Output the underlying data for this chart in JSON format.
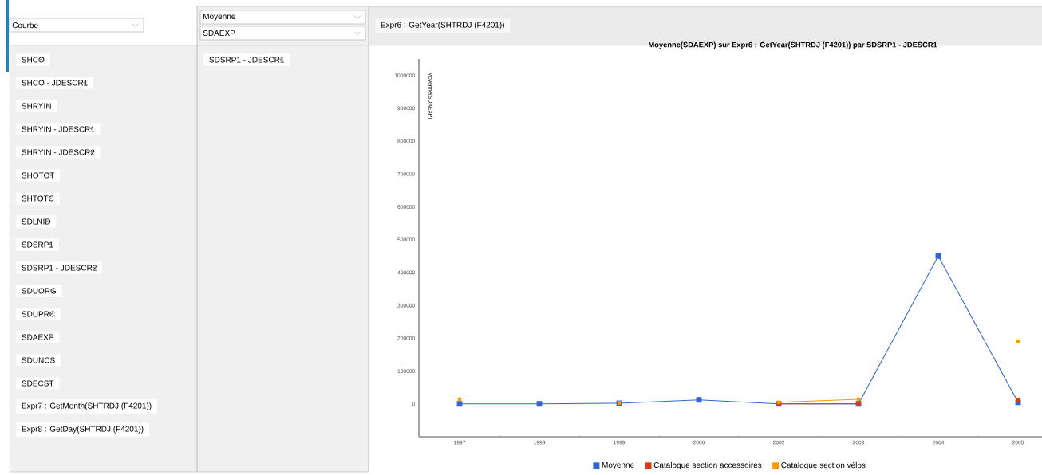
{
  "chart_data": {
    "type": "line",
    "title": "Moyenne(SDAEXP) sur Expr6 : GetYear(SHTRDJ (F4201)) par SDSRP1 - JDESCR1",
    "ylabel": "Moyenne(SDAEXP)",
    "categories": [
      "1997",
      "1998",
      "1999",
      "2000",
      "2002",
      "2003",
      "2004",
      "2005"
    ],
    "series": [
      {
        "name": "Moyenne",
        "color": "#3366cc",
        "values": [
          0,
          0,
          2000,
          12000,
          0,
          0,
          450000,
          5000
        ]
      },
      {
        "name": "Catalogue section accessoires",
        "color": "#dc3912",
        "values": [
          null,
          null,
          null,
          null,
          0,
          0,
          null,
          12000
        ]
      },
      {
        "name": "Catalogue section vélos",
        "color": "#ff9900",
        "values": [
          14000,
          null,
          3000,
          null,
          5000,
          14000,
          null,
          190000
        ]
      }
    ],
    "ylim": [
      -100000,
      1050000
    ],
    "yticks": [
      0,
      100000,
      200000,
      300000,
      400000,
      500000,
      600000,
      700000,
      800000,
      900000,
      1000000
    ],
    "legend": "bottom",
    "grid": false,
    "marker": "square",
    "line_style": "solid",
    "annotations": [
      "Courbe",
      "Moyenne",
      "SDAEXP",
      "Expr6 : GetYear(SHTRDJ (F4201))",
      "SDSRP1 - JDESCR1",
      "SHCO",
      "SHCO - JDESCR1",
      "SHRYIN",
      "SHRYIN - JDESCR1",
      "SHRYIN - JDESCR2",
      "SHOTOT",
      "SHTOTC",
      "SDLNID",
      "SDSRP1",
      "SDSRP1 - JDESCR2",
      "SDUORG",
      "SDUPRC",
      "SDAEXP",
      "SDUNCS",
      "SDECST",
      "Expr7 : GetMonth(SHTRDJ (F4201))",
      "Expr8 : GetDay(SHTRDJ (F4201))"
    ]
  }
}
